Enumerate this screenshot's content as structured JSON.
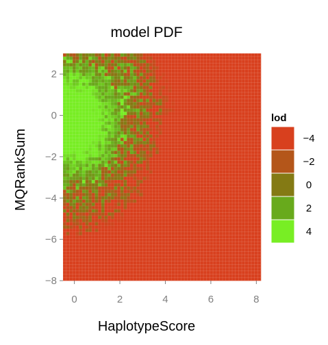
{
  "chart_data": {
    "type": "heatmap",
    "title": "model PDF",
    "xlabel": "HaplotypeScore",
    "ylabel": "MQRankSum",
    "x_ticks": [
      0,
      2,
      4,
      6,
      8
    ],
    "y_ticks": [
      2,
      0,
      -2,
      -4,
      -6,
      -8
    ],
    "x_range": [
      -0.5,
      8.2
    ],
    "y_range": [
      -8.0,
      3.0
    ],
    "grid": true,
    "legend": {
      "title": "lod",
      "placement": "right",
      "entries": [
        {
          "label": "−4",
          "value": -4,
          "color": "#d8401e"
        },
        {
          "label": "−2",
          "value": -2,
          "color": "#b4561a"
        },
        {
          "label": "0",
          "value": 0,
          "color": "#847a14"
        },
        {
          "label": "2",
          "value": 2,
          "color": "#68aa1c"
        },
        {
          "label": "4",
          "value": 4,
          "color": "#78ee24"
        }
      ]
    },
    "z_description_points": [
      {
        "x": 0.0,
        "y": -0.5,
        "lod": 4
      },
      {
        "x": 1.0,
        "y": 1.0,
        "lod": 2
      },
      {
        "x": 2.0,
        "y": 0.0,
        "lod": 2
      },
      {
        "x": 3.0,
        "y": 1.5,
        "lod": 0
      },
      {
        "x": 3.5,
        "y": -3.0,
        "lod": 0
      },
      {
        "x": 0.5,
        "y": -5.0,
        "lod": 0
      },
      {
        "x": 6.0,
        "y": 0.0,
        "lod": -4
      },
      {
        "x": 4.0,
        "y": -6.0,
        "lod": -4
      },
      {
        "x": 0.0,
        "y": -7.0,
        "lod": -4
      }
    ]
  }
}
